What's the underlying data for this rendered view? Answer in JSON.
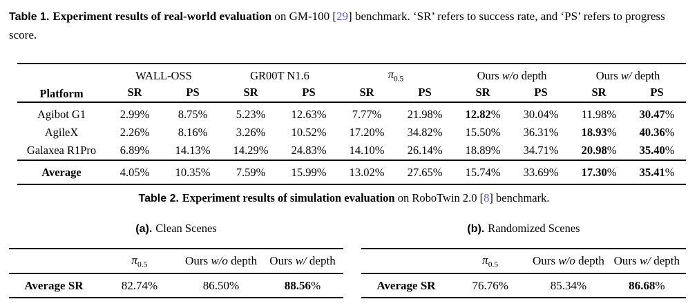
{
  "colors": {
    "citation": "#5b5be0",
    "rule": "#000000",
    "text": "#000000"
  },
  "table1": {
    "caption": {
      "label": "Table 1.",
      "title": "Experiment results of real-world evaluation",
      "pre_cite": " on GM-100 [",
      "cite": "29",
      "post_cite": "] benchmark. ‘SR’ refers to success rate, and ‘PS’ refers to progress score."
    },
    "platform_header": "Platform",
    "subheaders": [
      "SR",
      "PS"
    ],
    "groups": [
      {
        "segments": [
          {
            "t": "WALL-OSS"
          }
        ]
      },
      {
        "segments": [
          {
            "t": "GR00T N1.6"
          }
        ]
      },
      {
        "segments": [
          {
            "t": "π",
            "s": "i"
          },
          {
            "t": "0.5",
            "s": "sub"
          }
        ]
      },
      {
        "segments": [
          {
            "t": "Ours "
          },
          {
            "t": "w/o",
            "s": "i"
          },
          {
            "t": " depth"
          }
        ]
      },
      {
        "segments": [
          {
            "t": "Ours "
          },
          {
            "t": "w/",
            "s": "i"
          },
          {
            "t": " depth"
          }
        ]
      }
    ],
    "rows": [
      {
        "label": "Agibot G1",
        "cells": [
          [
            "2.99",
            0
          ],
          [
            "8.75",
            0
          ],
          [
            "5.23",
            0
          ],
          [
            "12.63",
            0
          ],
          [
            "7.77",
            0
          ],
          [
            "21.98",
            0
          ],
          [
            "12.82",
            1
          ],
          [
            "30.04",
            0
          ],
          [
            "11.98",
            0
          ],
          [
            "30.47",
            1
          ]
        ]
      },
      {
        "label": "AgileX",
        "cells": [
          [
            "2.26",
            0
          ],
          [
            "8.16",
            0
          ],
          [
            "3.26",
            0
          ],
          [
            "10.52",
            0
          ],
          [
            "17.20",
            0
          ],
          [
            "34.82",
            0
          ],
          [
            "15.50",
            0
          ],
          [
            "36.31",
            0
          ],
          [
            "18.93",
            1
          ],
          [
            "40.36",
            1
          ]
        ]
      },
      {
        "label": "Galaxea R1Pro",
        "cells": [
          [
            "6.89",
            0
          ],
          [
            "14.13",
            0
          ],
          [
            "14.29",
            0
          ],
          [
            "24.83",
            0
          ],
          [
            "14.10",
            0
          ],
          [
            "26.14",
            0
          ],
          [
            "18.89",
            0
          ],
          [
            "34.71",
            0
          ],
          [
            "20.98",
            1
          ],
          [
            "35.40",
            1
          ]
        ]
      }
    ],
    "average": {
      "label": "Average",
      "cells": [
        [
          "4.05",
          0
        ],
        [
          "10.35",
          0
        ],
        [
          "7.59",
          0
        ],
        [
          "15.99",
          0
        ],
        [
          "13.02",
          0
        ],
        [
          "27.65",
          0
        ],
        [
          "15.74",
          0
        ],
        [
          "33.69",
          0
        ],
        [
          "17.30",
          1
        ],
        [
          "35.41",
          1
        ]
      ]
    }
  },
  "table2": {
    "caption": {
      "label": "Table 2.",
      "title": "Experiment results of simulation evaluation",
      "pre_cite": " on RoboTwin 2.0 [",
      "cite": "8",
      "post_cite": "] benchmark."
    },
    "subtables": [
      {
        "subcaption_label": "(a).",
        "subcaption_text": "Clean Scenes",
        "row_label": "Average SR",
        "columns": [
          {
            "segments": [
              {
                "t": "π",
                "s": "i"
              },
              {
                "t": "0.5",
                "s": "sub"
              }
            ]
          },
          {
            "segments": [
              {
                "t": "Ours "
              },
              {
                "t": "w/o",
                "s": "i"
              },
              {
                "t": " depth"
              }
            ]
          },
          {
            "segments": [
              {
                "t": "Ours "
              },
              {
                "t": "w/",
                "s": "i"
              },
              {
                "t": " depth"
              }
            ]
          }
        ],
        "cells": [
          [
            "82.74",
            0
          ],
          [
            "86.50",
            0
          ],
          [
            "88.56",
            1
          ]
        ]
      },
      {
        "subcaption_label": "(b).",
        "subcaption_text": "Randomized Scenes",
        "row_label": "Average SR",
        "columns": [
          {
            "segments": [
              {
                "t": "π",
                "s": "i"
              },
              {
                "t": "0.5",
                "s": "sub"
              }
            ]
          },
          {
            "segments": [
              {
                "t": "Ours "
              },
              {
                "t": "w/o",
                "s": "i"
              },
              {
                "t": " depth"
              }
            ]
          },
          {
            "segments": [
              {
                "t": "Ours "
              },
              {
                "t": "w/",
                "s": "i"
              },
              {
                "t": " depth"
              }
            ]
          }
        ],
        "cells": [
          [
            "76.76",
            0
          ],
          [
            "85.34",
            0
          ],
          [
            "86.68",
            1
          ]
        ]
      }
    ]
  }
}
